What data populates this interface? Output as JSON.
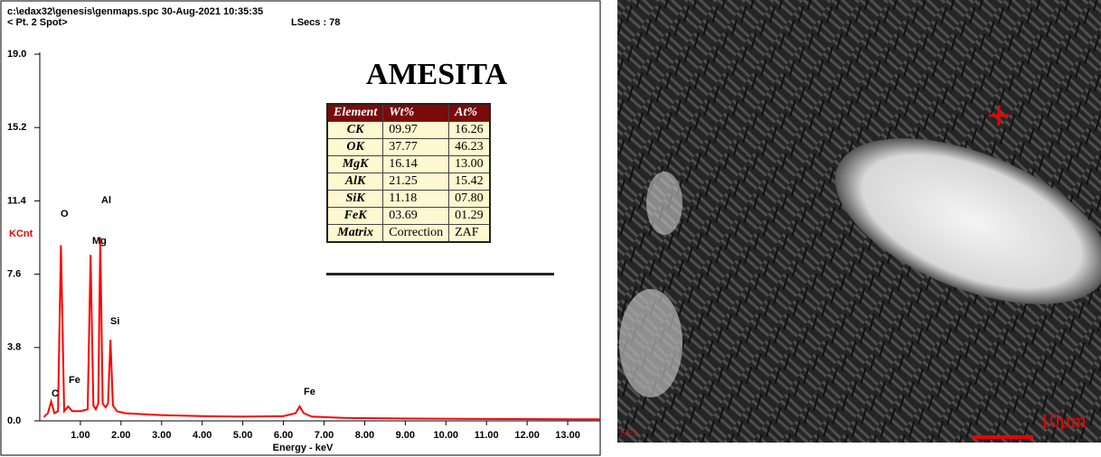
{
  "chart_data": {
    "type": "line",
    "header": [
      "c:\\edax32\\genesis\\genmaps.spc  30-Aug-2021 10:35:35",
      "< Pt.  2 Spot>",
      "LSecs :  78"
    ],
    "title": "AMESITA",
    "y_label": "KCnt",
    "x_label": "Energy - keV",
    "x": [
      0.1,
      0.2,
      0.28,
      0.36,
      0.45,
      0.52,
      0.6,
      0.7,
      0.8,
      1.0,
      1.18,
      1.25,
      1.32,
      1.38,
      1.44,
      1.49,
      1.55,
      1.62,
      1.68,
      1.74,
      1.8,
      1.9,
      2.1,
      2.5,
      3.0,
      4.0,
      5.0,
      6.0,
      6.3,
      6.4,
      6.5,
      6.7,
      7.5,
      9.0,
      11.0,
      13.8
    ],
    "series": [
      {
        "name": "Spectrum",
        "color": "#ff0000",
        "values": [
          0.2,
          0.4,
          1.0,
          0.4,
          0.5,
          9.1,
          0.5,
          0.75,
          0.5,
          0.5,
          0.6,
          8.6,
          0.8,
          0.6,
          0.9,
          9.5,
          0.9,
          0.7,
          0.9,
          4.2,
          0.8,
          0.5,
          0.4,
          0.35,
          0.3,
          0.25,
          0.22,
          0.25,
          0.4,
          0.75,
          0.4,
          0.22,
          0.15,
          0.12,
          0.1,
          0.08
        ]
      }
    ],
    "annotations": [
      "C",
      "O",
      "Fe",
      "Mg",
      "Al",
      "Si",
      "Fe"
    ],
    "xlim": [
      0,
      13.8
    ],
    "ylim": [
      0,
      19
    ],
    "xticks": [
      {
        "value": 1,
        "label": "1.00"
      },
      {
        "value": 2,
        "label": "2.00"
      },
      {
        "value": 3,
        "label": "3.00"
      },
      {
        "value": 4,
        "label": "4.00"
      },
      {
        "value": 5,
        "label": "5.00"
      },
      {
        "value": 6,
        "label": "6.00"
      },
      {
        "value": 7,
        "label": "7.00"
      },
      {
        "value": 8,
        "label": "8.00"
      },
      {
        "value": 9,
        "label": "9.00"
      },
      {
        "value": 10,
        "label": "10.00"
      },
      {
        "value": 11,
        "label": "11.00"
      },
      {
        "value": 12,
        "label": "12.00"
      },
      {
        "value": 13,
        "label": "13.00"
      }
    ],
    "yticks": [
      {
        "value": 0,
        "label": "0.0"
      },
      {
        "value": 3.8,
        "label": "3.8"
      },
      {
        "value": 7.6,
        "label": "7.6"
      },
      {
        "value": 11.4,
        "label": "11.4"
      },
      {
        "value": 15.2,
        "label": "15.2"
      },
      {
        "value": 19,
        "label": "19.0"
      }
    ],
    "table": {
      "header": [
        "Element",
        "Wt%",
        "At%"
      ],
      "rows": [
        [
          "CK",
          "09.97",
          "16.26"
        ],
        [
          "OK",
          "37.77",
          "46.23"
        ],
        [
          "MgK",
          "16.14",
          "13.00"
        ],
        [
          "AlK",
          "21.25",
          "15.42"
        ],
        [
          "SiK",
          "11.18",
          "07.80"
        ],
        [
          "FeK",
          "03.69",
          "01.29"
        ],
        [
          "Matrix",
          "Correction",
          "ZAF"
        ]
      ]
    }
  },
  "image": {
    "detector": "SE1",
    "scale": "10µm"
  }
}
